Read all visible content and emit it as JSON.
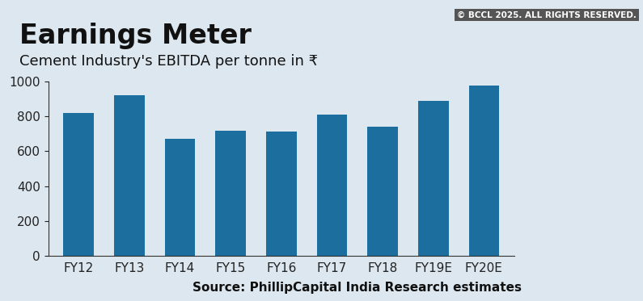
{
  "chart_data": {
    "type": "bar",
    "title": "Earnings Meter",
    "subtitle": "Cement Industry's EBITDA per tonne in ₹",
    "source": "Source: PhillipCapital India Research estimates",
    "annotations": [
      "© BCCL 2025. ALL RIGHTS RESERVED."
    ],
    "categories": [
      "FY12",
      "FY13",
      "FY14",
      "FY15",
      "FY16",
      "FY17",
      "FY18",
      "FY19E",
      "FY20E"
    ],
    "values": [
      820,
      920,
      670,
      715,
      710,
      810,
      740,
      890,
      975
    ],
    "color": "#1c6e9f",
    "ylim": [
      0,
      1000
    ],
    "yticks": [
      0,
      200,
      400,
      600,
      800,
      1000
    ],
    "grid": false
  }
}
